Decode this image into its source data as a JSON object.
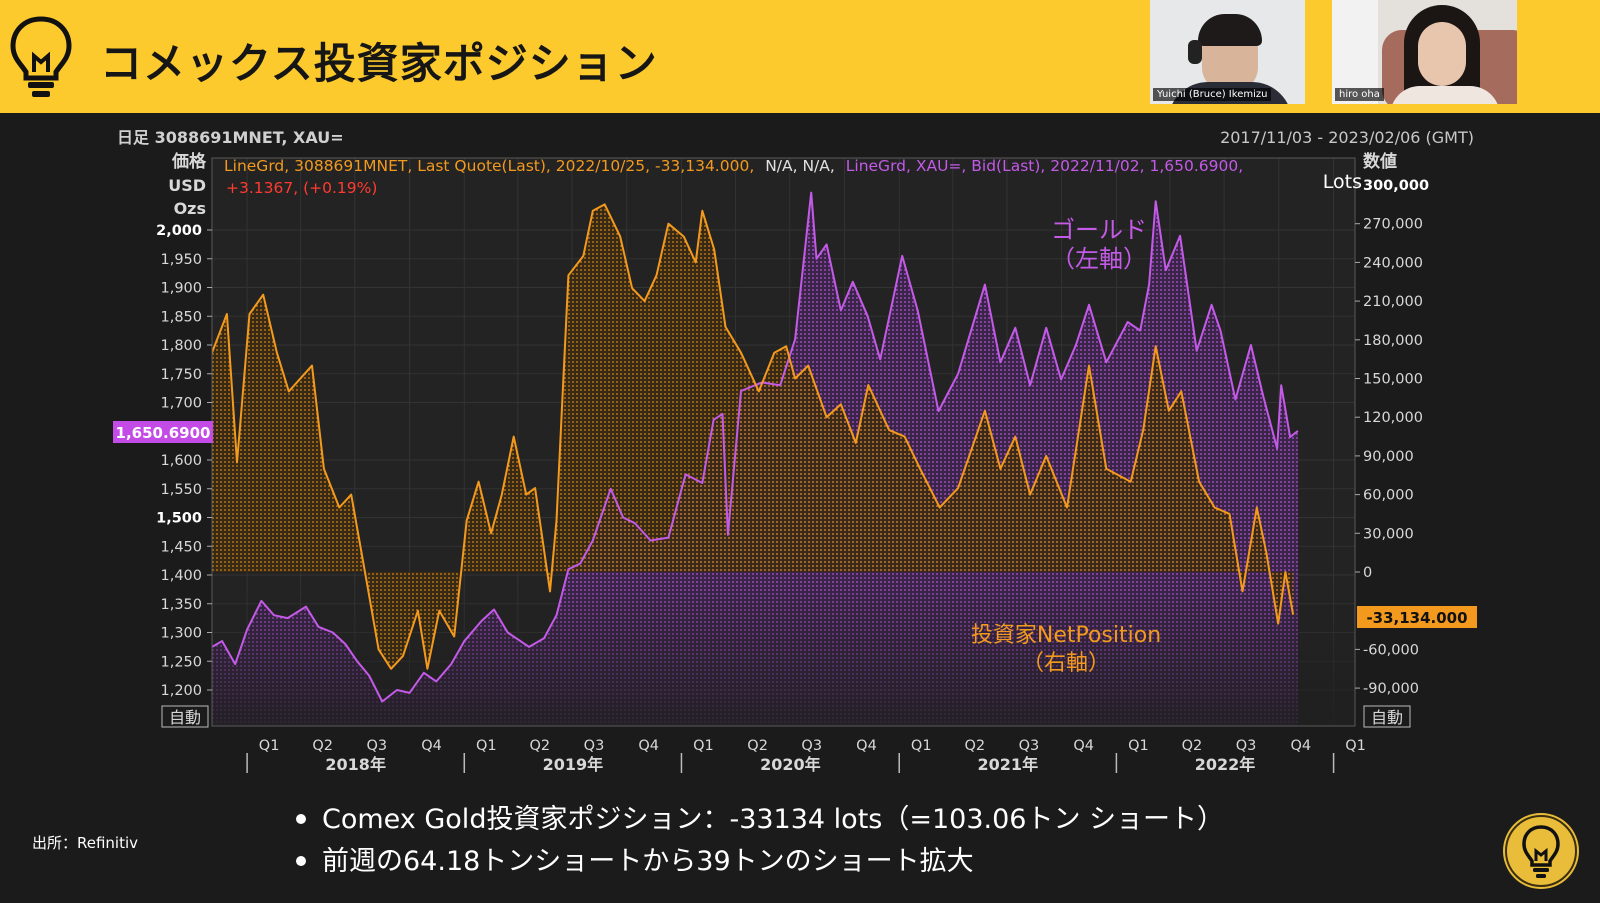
{
  "header": {
    "title": "コメックス投資家ポジション",
    "background": "#fcca2c"
  },
  "participants": [
    {
      "name": "Yuichi (Bruce) Ikemizu"
    },
    {
      "name": "hiro oha"
    }
  ],
  "chart_header": {
    "left": "日足 3088691MNET, XAU=",
    "right": "2017/11/03 - 2023/02/06 (GMT)",
    "quote_line1_orange": "LineGrd, 3088691MNET, Last Quote(Last), 2022/10/25, -33,134.000,",
    "quote_line1_white": "N/A, N/A,",
    "quote_line1_purple": "LineGrd, XAU=, Bid(Last), 2022/11/02, 1,650.6900,",
    "quote_line2_red": "+3.1367, (+0.19%)"
  },
  "annotations": {
    "gold_line1": "ゴールド",
    "gold_line2": "（左軸）",
    "net_line1": "投資家NetPosition",
    "net_line2": "（右軸）"
  },
  "bullets": [
    "Comex Gold投資家ポジション：-33134 lots（=103.06トン ショート）",
    "前週の64.18トンショートから39トンのショート拡大"
  ],
  "source": "出所：Refinitiv",
  "chart_data": {
    "type": "line",
    "left_axis": {
      "labels": [
        "価格",
        "USD",
        "Ozs"
      ],
      "ticks": [
        2000,
        1950,
        1900,
        1850,
        1800,
        1750,
        1700,
        1600,
        1550,
        1500,
        1450,
        1400,
        1350,
        1300,
        1250,
        1200
      ],
      "tick_labels": [
        "2,000",
        "1,950",
        "1,900",
        "1,850",
        "1,800",
        "1,750",
        "1,700",
        "1,600",
        "1,550",
        "1,500",
        "1,450",
        "1,400",
        "1,350",
        "1,300",
        "1,250",
        "1,200"
      ],
      "ylim": [
        1175,
        2050
      ],
      "last_value_label": "1,650.6900",
      "auto_label": "自動"
    },
    "right_axis": {
      "labels": [
        "数値",
        "Lots"
      ],
      "ticks": [
        300000,
        270000,
        240000,
        210000,
        180000,
        150000,
        120000,
        90000,
        60000,
        30000,
        0,
        -60000,
        -90000
      ],
      "tick_labels": [
        "300,000",
        "270,000",
        "240,000",
        "210,000",
        "180,000",
        "150,000",
        "120,000",
        "90,000",
        "60,000",
        "30,000",
        "0",
        "-60,000",
        "-90,000"
      ],
      "last_value_label": "-33,134.000",
      "auto_label": "自動"
    },
    "x_axis": {
      "quarter_labels": [
        "Q1",
        "Q2",
        "Q3",
        "Q4",
        "Q1",
        "Q2",
        "Q3",
        "Q4",
        "Q1",
        "Q2",
        "Q3",
        "Q4",
        "Q1",
        "Q2",
        "Q3",
        "Q4",
        "Q1",
        "Q2",
        "Q3",
        "Q4",
        "Q1"
      ],
      "year_labels": [
        "2018年",
        "2019年",
        "2020年",
        "2021年",
        "2022年"
      ],
      "range": [
        "2017/11/03",
        "2023/02/06"
      ]
    },
    "series": [
      {
        "name": "ゴールド",
        "axis": "left",
        "color": "#c45ae8",
        "points": [
          [
            "2017/11/03",
            1275
          ],
          [
            "2017/11/20",
            1285
          ],
          [
            "2017/12/12",
            1245
          ],
          [
            "2018/01/01",
            1305
          ],
          [
            "2018/01/25",
            1355
          ],
          [
            "2018/02/15",
            1330
          ],
          [
            "2018/03/10",
            1325
          ],
          [
            "2018/04/10",
            1345
          ],
          [
            "2018/05/01",
            1310
          ],
          [
            "2018/05/25",
            1300
          ],
          [
            "2018/06/15",
            1280
          ],
          [
            "2018/07/05",
            1250
          ],
          [
            "2018/07/25",
            1225
          ],
          [
            "2018/08/16",
            1180
          ],
          [
            "2018/09/10",
            1200
          ],
          [
            "2018/10/01",
            1195
          ],
          [
            "2018/10/25",
            1230
          ],
          [
            "2018/11/15",
            1215
          ],
          [
            "2018/12/10",
            1245
          ],
          [
            "2019/01/01",
            1285
          ],
          [
            "2019/01/30",
            1320
          ],
          [
            "2019/02/20",
            1340
          ],
          [
            "2019/03/15",
            1300
          ],
          [
            "2019/04/20",
            1275
          ],
          [
            "2019/05/15",
            1290
          ],
          [
            "2019/06/05",
            1330
          ],
          [
            "2019/06/25",
            1410
          ],
          [
            "2019/07/15",
            1420
          ],
          [
            "2019/08/05",
            1460
          ],
          [
            "2019/09/04",
            1550
          ],
          [
            "2019/09/25",
            1500
          ],
          [
            "2019/10/15",
            1490
          ],
          [
            "2019/11/10",
            1460
          ],
          [
            "2019/12/10",
            1465
          ],
          [
            "2020/01/08",
            1575
          ],
          [
            "2020/02/05",
            1560
          ],
          [
            "2020/02/24",
            1670
          ],
          [
            "2020/03/10",
            1680
          ],
          [
            "2020/03/19",
            1470
          ],
          [
            "2020/04/10",
            1720
          ],
          [
            "2020/05/15",
            1735
          ],
          [
            "2020/06/15",
            1730
          ],
          [
            "2020/07/10",
            1810
          ],
          [
            "2020/08/06",
            2065
          ],
          [
            "2020/08/15",
            1950
          ],
          [
            "2020/09/01",
            1975
          ],
          [
            "2020/09/25",
            1860
          ],
          [
            "2020/10/15",
            1910
          ],
          [
            "2020/11/09",
            1850
          ],
          [
            "2020/11/30",
            1775
          ],
          [
            "2021/01/06",
            1955
          ],
          [
            "2021/02/01",
            1860
          ],
          [
            "2021/03/08",
            1685
          ],
          [
            "2021/04/10",
            1750
          ],
          [
            "2021/05/25",
            1905
          ],
          [
            "2021/06/20",
            1770
          ],
          [
            "2021/07/15",
            1830
          ],
          [
            "2021/08/09",
            1730
          ],
          [
            "2021/09/05",
            1830
          ],
          [
            "2021/09/30",
            1740
          ],
          [
            "2021/10/25",
            1800
          ],
          [
            "2021/11/16",
            1870
          ],
          [
            "2021/12/15",
            1770
          ],
          [
            "2022/01/20",
            1840
          ],
          [
            "2022/02/10",
            1825
          ],
          [
            "2022/02/25",
            1905
          ],
          [
            "2022/03/08",
            2050
          ],
          [
            "2022/03/25",
            1930
          ],
          [
            "2022/04/18",
            1990
          ],
          [
            "2022/05/16",
            1790
          ],
          [
            "2022/06/10",
            1870
          ],
          [
            "2022/06/25",
            1825
          ],
          [
            "2022/07/20",
            1705
          ],
          [
            "2022/08/15",
            1800
          ],
          [
            "2022/09/05",
            1710
          ],
          [
            "2022/09/28",
            1620
          ],
          [
            "2022/10/05",
            1730
          ],
          [
            "2022/10/20",
            1640
          ],
          [
            "2022/11/02",
            1650.69
          ]
        ]
      },
      {
        "name": "投資家NetPosition",
        "axis": "right",
        "color": "#f39a1e",
        "points": [
          [
            "2017/11/03",
            170000
          ],
          [
            "2017/11/28",
            200000
          ],
          [
            "2017/12/15",
            85000
          ],
          [
            "2018/01/05",
            200000
          ],
          [
            "2018/01/28",
            215000
          ],
          [
            "2018/02/20",
            170000
          ],
          [
            "2018/03/12",
            140000
          ],
          [
            "2018/04/20",
            160000
          ],
          [
            "2018/05/10",
            80000
          ],
          [
            "2018/06/05",
            50000
          ],
          [
            "2018/06/25",
            60000
          ],
          [
            "2018/07/20",
            -5000
          ],
          [
            "2018/08/10",
            -60000
          ],
          [
            "2018/08/31",
            -75000
          ],
          [
            "2018/09/20",
            -65000
          ],
          [
            "2018/10/15",
            -30000
          ],
          [
            "2018/10/31",
            -75000
          ],
          [
            "2018/11/20",
            -30000
          ],
          [
            "2018/12/15",
            -50000
          ],
          [
            "2019/01/05",
            40000
          ],
          [
            "2019/01/25",
            70000
          ],
          [
            "2019/02/15",
            30000
          ],
          [
            "2019/03/05",
            60000
          ],
          [
            "2019/03/25",
            105000
          ],
          [
            "2019/04/15",
            60000
          ],
          [
            "2019/04/30",
            65000
          ],
          [
            "2019/05/25",
            -15000
          ],
          [
            "2019/06/05",
            40000
          ],
          [
            "2019/06/25",
            230000
          ],
          [
            "2019/07/20",
            245000
          ],
          [
            "2019/08/05",
            280000
          ],
          [
            "2019/08/25",
            285000
          ],
          [
            "2019/09/20",
            260000
          ],
          [
            "2019/10/10",
            220000
          ],
          [
            "2019/10/31",
            210000
          ],
          [
            "2019/11/20",
            230000
          ],
          [
            "2019/12/10",
            270000
          ],
          [
            "2020/01/05",
            260000
          ],
          [
            "2020/01/25",
            240000
          ],
          [
            "2020/02/05",
            280000
          ],
          [
            "2020/02/25",
            250000
          ],
          [
            "2020/03/15",
            190000
          ],
          [
            "2020/04/10",
            170000
          ],
          [
            "2020/05/10",
            140000
          ],
          [
            "2020/06/05",
            170000
          ],
          [
            "2020/06/25",
            175000
          ],
          [
            "2020/07/10",
            150000
          ],
          [
            "2020/08/01",
            160000
          ],
          [
            "2020/09/01",
            120000
          ],
          [
            "2020/09/25",
            130000
          ],
          [
            "2020/10/20",
            100000
          ],
          [
            "2020/11/10",
            145000
          ],
          [
            "2020/12/15",
            110000
          ],
          [
            "2021/01/10",
            105000
          ],
          [
            "2021/02/05",
            80000
          ],
          [
            "2021/03/10",
            50000
          ],
          [
            "2021/04/10",
            65000
          ],
          [
            "2021/05/25",
            125000
          ],
          [
            "2021/06/20",
            80000
          ],
          [
            "2021/07/15",
            105000
          ],
          [
            "2021/08/09",
            60000
          ],
          [
            "2021/09/05",
            90000
          ],
          [
            "2021/10/10",
            50000
          ],
          [
            "2021/11/16",
            160000
          ],
          [
            "2021/12/15",
            80000
          ],
          [
            "2022/01/25",
            70000
          ],
          [
            "2022/02/15",
            110000
          ],
          [
            "2022/03/08",
            175000
          ],
          [
            "2022/03/30",
            125000
          ],
          [
            "2022/04/20",
            140000
          ],
          [
            "2022/05/20",
            70000
          ],
          [
            "2022/06/15",
            50000
          ],
          [
            "2022/07/10",
            45000
          ],
          [
            "2022/08/01",
            -15000
          ],
          [
            "2022/08/25",
            50000
          ],
          [
            "2022/09/10",
            15000
          ],
          [
            "2022/09/30",
            -40000
          ],
          [
            "2022/10/12",
            0
          ],
          [
            "2022/10/25",
            -33134
          ]
        ]
      }
    ]
  }
}
